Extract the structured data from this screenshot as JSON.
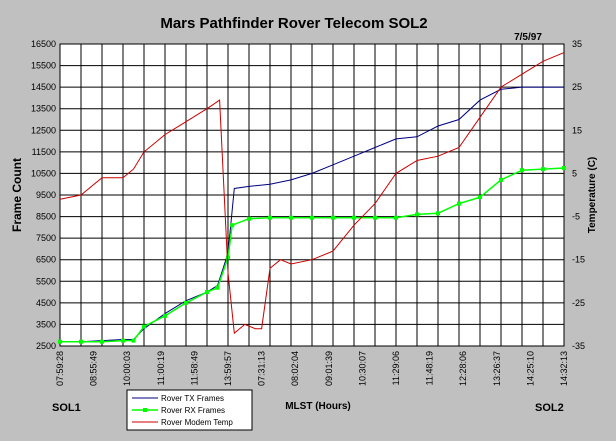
{
  "chart_data": {
    "type": "line",
    "title": "Mars Pathfinder Rover Telecom SOL2",
    "date": "7/5/97",
    "xlabel": "MLST (Hours)",
    "ylabel": "Frame Count",
    "y2label": "Temperature (C)",
    "start_label": "SOL1",
    "end_label": "SOL2",
    "ylim": [
      2500,
      16500
    ],
    "y2lim": [
      -35,
      35
    ],
    "yticks": [
      2500,
      3500,
      4500,
      5500,
      6500,
      7500,
      8500,
      9500,
      10500,
      11500,
      12500,
      13500,
      14500,
      15500,
      16500
    ],
    "y2ticks": [
      -35,
      -25,
      -15,
      -5,
      5,
      15,
      25,
      35
    ],
    "categories": [
      "07:59:28",
      "08:55:49",
      "10:00:03",
      "11:00:19",
      "11:58:49",
      "13:59:57",
      "07:31:13",
      "08:02:04",
      "09:01:39",
      "10:30:07",
      "11:29:06",
      "11:48:19",
      "12:28:06",
      "13:26:37",
      "14:25:10",
      "14:32:13"
    ],
    "grid": true,
    "legend_position": "bottom-left",
    "series": [
      {
        "name": "Rover TX Frames",
        "axis": "left",
        "color": "#000080",
        "points": [
          [
            0,
            2700
          ],
          [
            1,
            2700
          ],
          [
            2,
            2750
          ],
          [
            3,
            2800
          ],
          [
            3.5,
            2800
          ],
          [
            4,
            3300
          ],
          [
            5,
            4000
          ],
          [
            6,
            4600
          ],
          [
            7,
            5000
          ],
          [
            7.5,
            5300
          ],
          [
            8,
            6800
          ],
          [
            8.3,
            9800
          ],
          [
            9,
            9900
          ],
          [
            10,
            10000
          ],
          [
            11,
            10200
          ],
          [
            12,
            10500
          ],
          [
            13,
            10900
          ],
          [
            14,
            11300
          ],
          [
            15,
            11700
          ],
          [
            16,
            12100
          ],
          [
            17,
            12200
          ],
          [
            18,
            12700
          ],
          [
            19,
            13000
          ],
          [
            20,
            13900
          ],
          [
            21,
            14400
          ],
          [
            22,
            14500
          ],
          [
            23,
            14500
          ],
          [
            24,
            14500
          ]
        ]
      },
      {
        "name": "Rover RX Frames",
        "axis": "left",
        "color": "#00ff00",
        "points": [
          [
            0,
            2700
          ],
          [
            1,
            2700
          ],
          [
            2,
            2700
          ],
          [
            3,
            2750
          ],
          [
            3.5,
            2750
          ],
          [
            4,
            3400
          ],
          [
            5,
            3900
          ],
          [
            6,
            4500
          ],
          [
            7,
            5000
          ],
          [
            7.5,
            5200
          ],
          [
            8,
            6600
          ],
          [
            8.2,
            8100
          ],
          [
            9,
            8400
          ],
          [
            10,
            8450
          ],
          [
            11,
            8450
          ],
          [
            12,
            8450
          ],
          [
            13,
            8450
          ],
          [
            14,
            8450
          ],
          [
            15,
            8450
          ],
          [
            16,
            8450
          ],
          [
            17,
            8600
          ],
          [
            18,
            8650
          ],
          [
            19,
            9100
          ],
          [
            20,
            9400
          ],
          [
            21,
            10200
          ],
          [
            22,
            10650
          ],
          [
            23,
            10700
          ],
          [
            24,
            10750
          ]
        ]
      },
      {
        "name": "Rover Modem Temp",
        "axis": "right",
        "color": "#cc0000",
        "points": [
          [
            0,
            -1
          ],
          [
            1,
            0
          ],
          [
            2,
            4
          ],
          [
            3,
            4
          ],
          [
            3.5,
            6
          ],
          [
            4,
            10
          ],
          [
            5,
            14
          ],
          [
            6,
            17
          ],
          [
            7,
            20
          ],
          [
            7.3,
            21
          ],
          [
            7.6,
            22
          ],
          [
            8,
            -18
          ],
          [
            8.3,
            -32
          ],
          [
            8.8,
            -30
          ],
          [
            9.3,
            -31
          ],
          [
            9.6,
            -31
          ],
          [
            10,
            -17
          ],
          [
            10.5,
            -15
          ],
          [
            11,
            -16
          ],
          [
            12,
            -15
          ],
          [
            13,
            -13
          ],
          [
            14,
            -7
          ],
          [
            15,
            -2
          ],
          [
            16,
            5
          ],
          [
            17,
            8
          ],
          [
            18,
            9
          ],
          [
            19,
            11
          ],
          [
            20,
            18
          ],
          [
            21,
            25
          ],
          [
            22,
            28
          ],
          [
            23,
            31
          ],
          [
            24,
            33
          ]
        ]
      }
    ]
  }
}
